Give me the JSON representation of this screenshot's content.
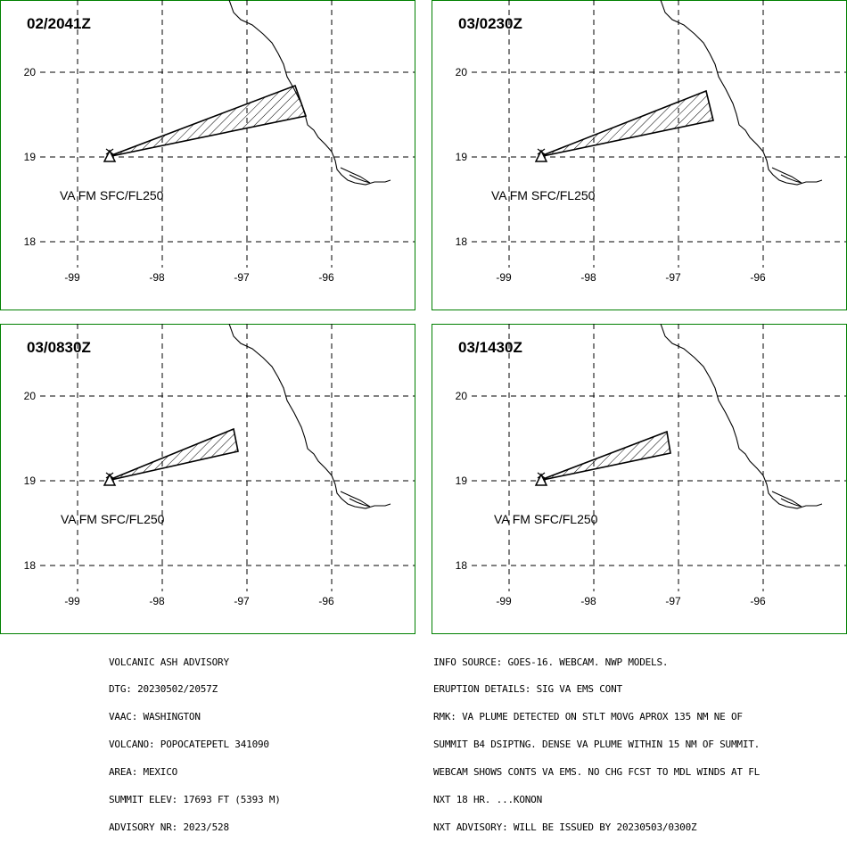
{
  "panels": [
    {
      "time": "02/2041Z",
      "label": "VA FM SFC/FL250"
    },
    {
      "time": "03/0230Z",
      "label": "VA FM SFC/FL250"
    },
    {
      "time": "03/0830Z",
      "label": "VA FM SFC/FL250"
    },
    {
      "time": "03/1430Z",
      "label": "VA FM SFC/FL250"
    }
  ],
  "axes": {
    "lat_labels": [
      "20",
      "19",
      "18"
    ],
    "lon_labels": [
      "-99",
      "-98",
      "-97",
      "-96"
    ]
  },
  "colors": {
    "border": "#008000",
    "line": "#000000",
    "grid": "#000000"
  },
  "icons": {
    "volcano": "volcano-triangle-icon"
  },
  "advisory_left": [
    "VOLCANIC ASH ADVISORY",
    "DTG: 20230502/2057Z",
    "VAAC: WASHINGTON",
    "VOLCANO: POPOCATEPETL 341090",
    "AREA: MEXICO",
    "SUMMIT ELEV: 17693 FT (5393 M)",
    "ADVISORY NR: 2023/528"
  ],
  "advisory_right": [
    "INFO SOURCE: GOES-16. WEBCAM. NWP MODELS.",
    "ERUPTION DETAILS: SIG VA EMS CONT",
    "RMK: VA PLUME DETECTED ON STLT MOVG APROX 135 NM NE OF",
    "SUMMIT B4 DSIPTNG. DENSE VA PLUME WITHIN 15 NM OF SUMMIT.",
    "WEBCAM SHOWS CONTS VA EMS. NO CHG FCST TO MDL WINDS AT FL",
    "NXT 18 HR. ...KONON",
    "NXT ADVISORY: WILL BE ISSUED BY 20230503/0300Z"
  ]
}
